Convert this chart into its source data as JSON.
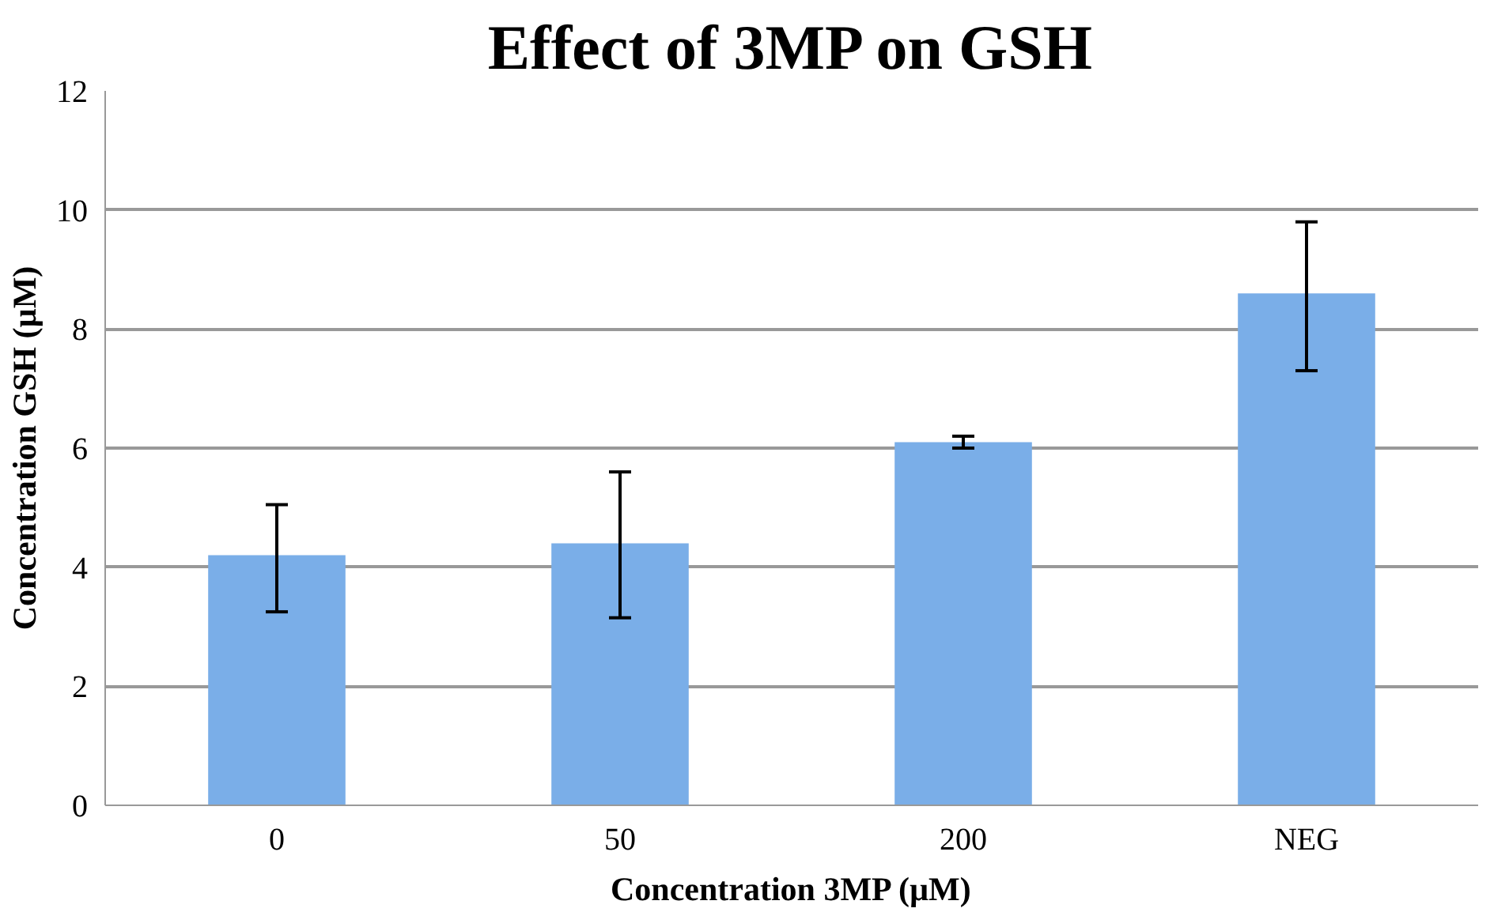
{
  "chart_data": {
    "type": "bar",
    "title": "Effect of 3MP on GSH",
    "xlabel": "Concentration 3MP (µM)",
    "ylabel": "Concentration GSH (µM)",
    "categories": [
      "0",
      "50",
      "200",
      "NEG"
    ],
    "values": [
      4.2,
      4.4,
      6.1,
      8.6
    ],
    "errors": [
      [
        3.25,
        5.05
      ],
      [
        3.15,
        5.6
      ],
      [
        6.0,
        6.2
      ],
      [
        7.3,
        9.8
      ]
    ],
    "color": "#7aaee8",
    "ylim": [
      0,
      12
    ],
    "yticks": [
      0,
      2,
      4,
      6,
      8,
      10,
      12
    ],
    "grid": "y"
  }
}
